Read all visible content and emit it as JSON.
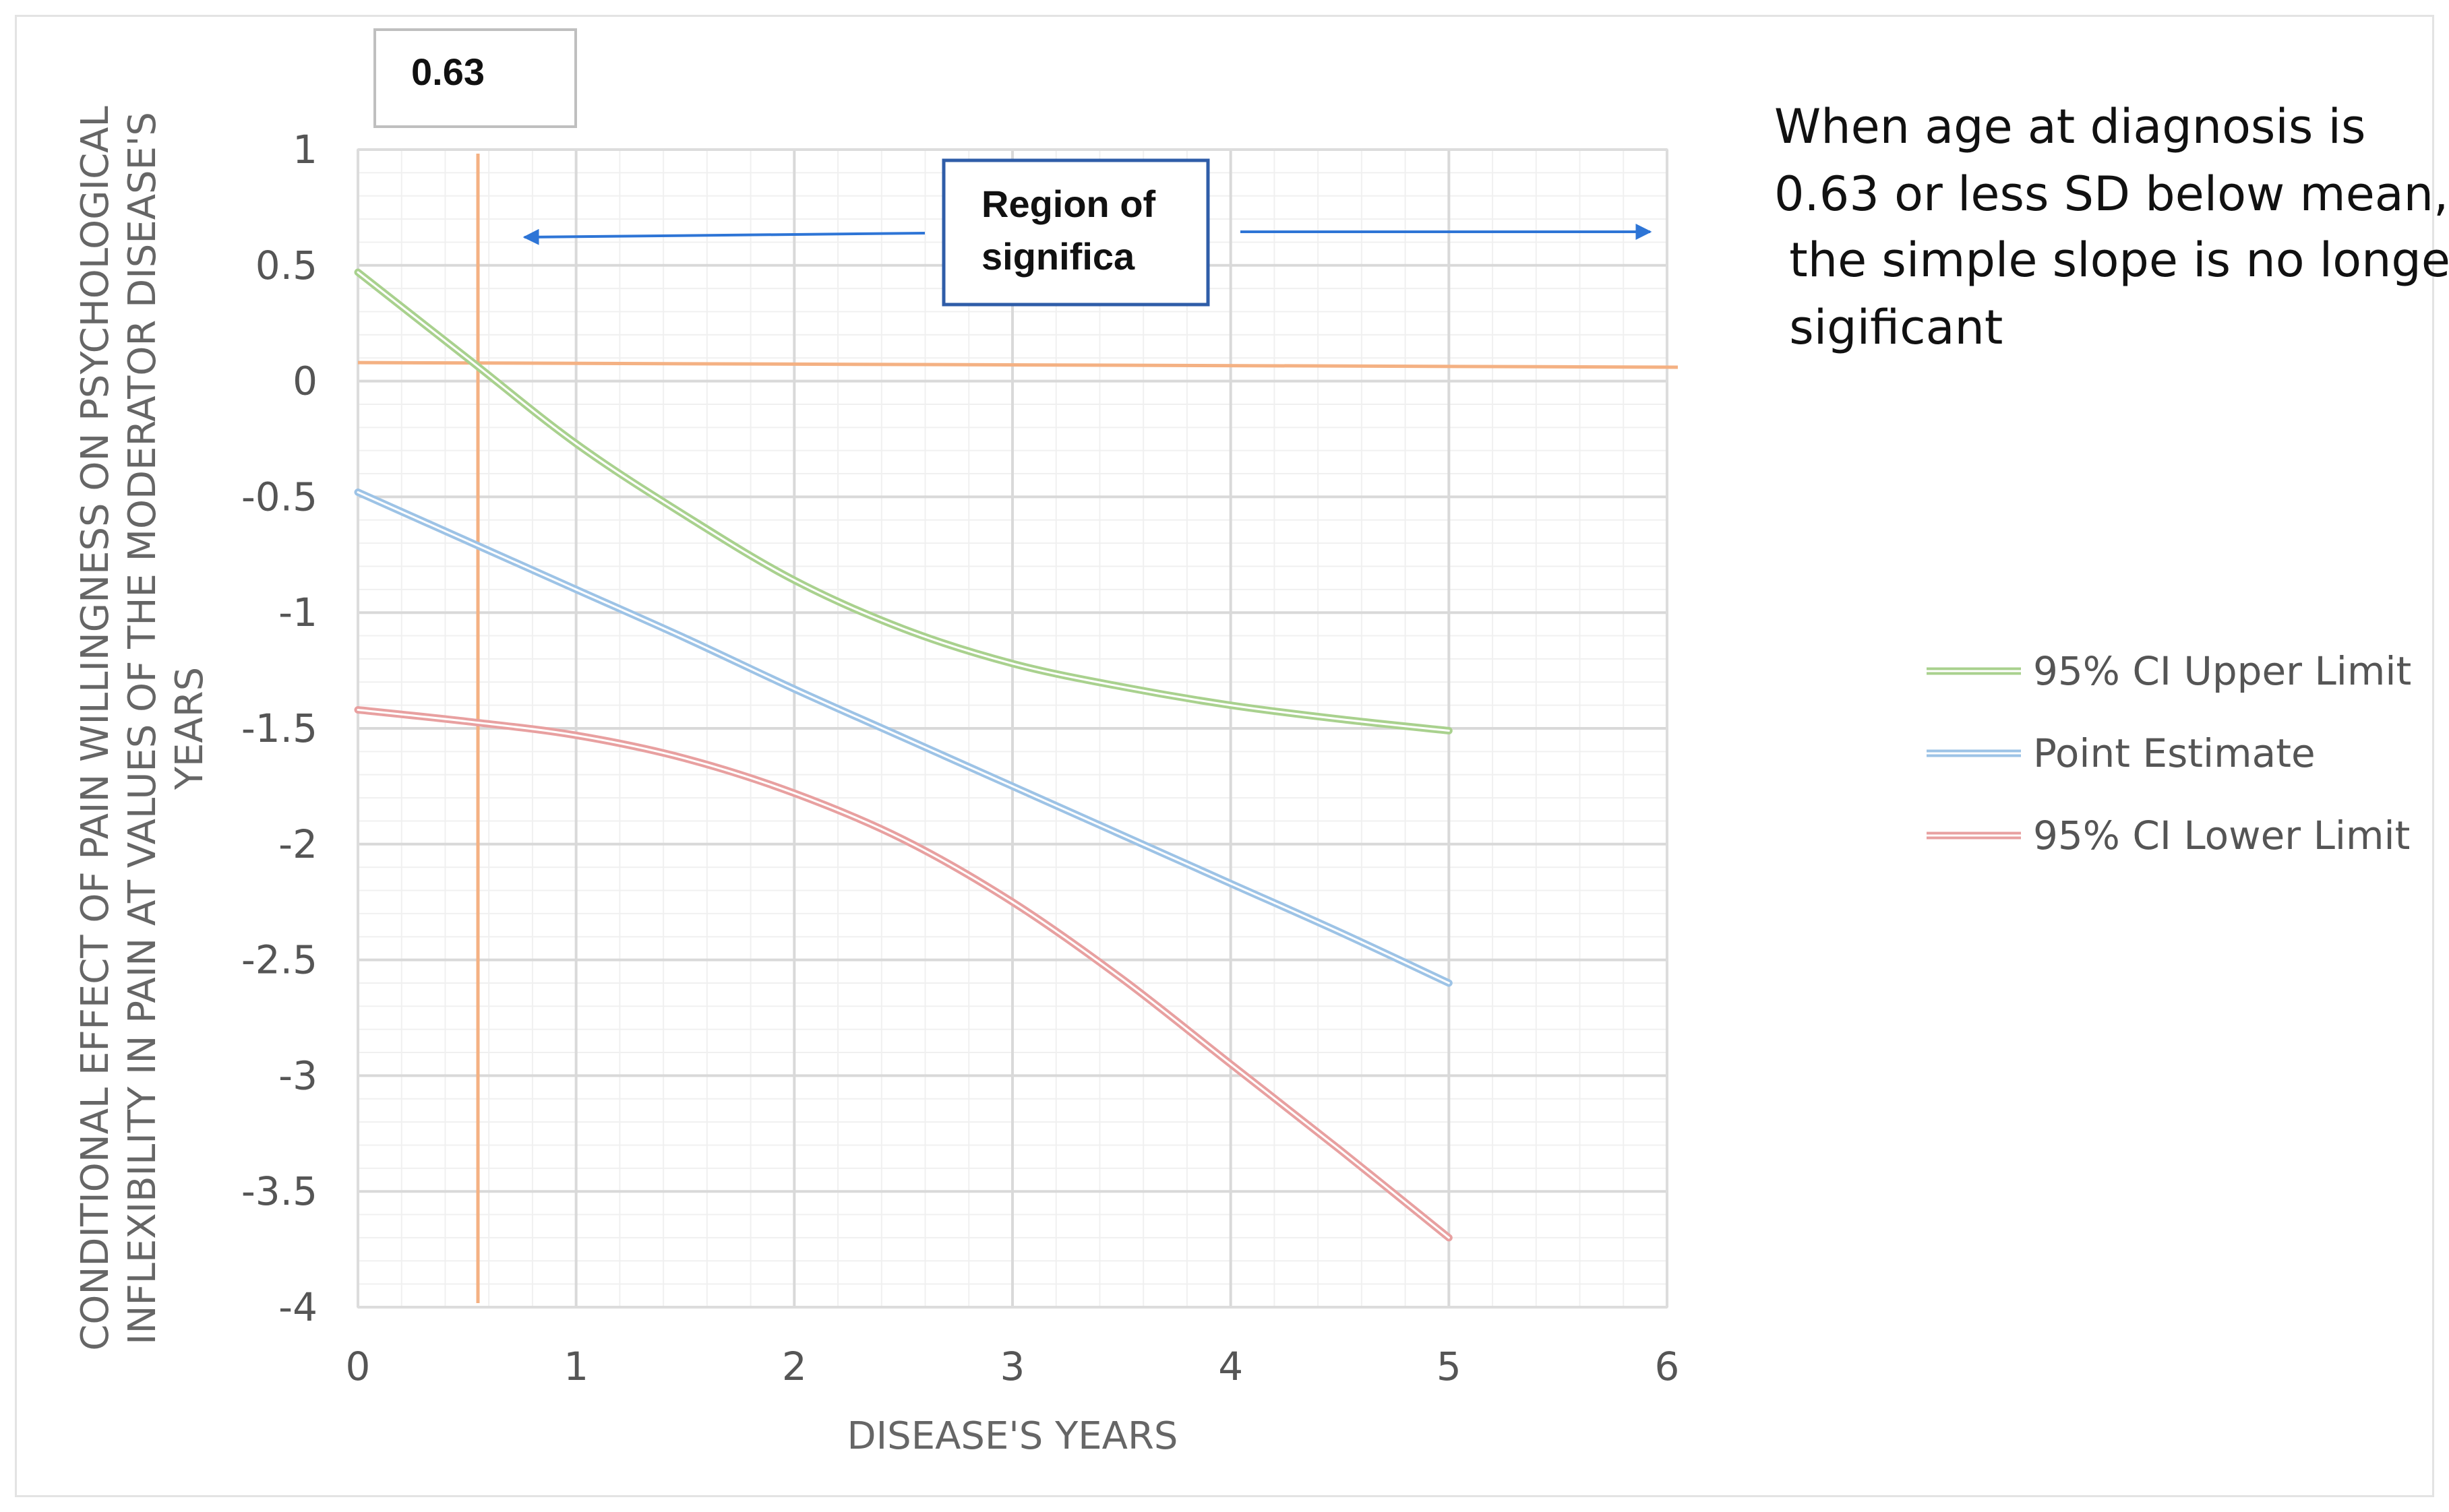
{
  "chart_data": {
    "type": "line",
    "xlabel": "DISEASE'S YEARS",
    "ylabel_lines": [
      "CONDITIONAL EFFECT OF PAIN WILLINGNESS ON PSYCHOLOGICAL",
      "INFLEXIBILITY IN PAIN AT VALUES OF THE MODERATOR DISEASE'S",
      "YEARS"
    ],
    "xlim": [
      0,
      6
    ],
    "ylim": [
      -4,
      1
    ],
    "x_ticks": [
      "0",
      "1",
      "2",
      "3",
      "4",
      "5",
      "6"
    ],
    "y_ticks": [
      "1",
      "0.5",
      "0",
      "-0.5",
      "-1",
      "-1.5",
      "-2",
      "-2.5",
      "-3",
      "-3.5",
      "-4"
    ],
    "x_tick_values": [
      0,
      1,
      2,
      3,
      4,
      5,
      6
    ],
    "y_tick_values": [
      1,
      0.5,
      0,
      -0.5,
      -1,
      -1.5,
      -2,
      -2.5,
      -3,
      -3.5,
      -4
    ],
    "series": [
      {
        "name": "95% CI Upper Limit",
        "color": "#a9d18e",
        "x": [
          0,
          0.5,
          1,
          1.5,
          2,
          2.5,
          3,
          3.5,
          4,
          4.5,
          5
        ],
        "values": [
          0.47,
          0.1,
          -0.27,
          -0.58,
          -0.86,
          -1.07,
          -1.22,
          -1.32,
          -1.4,
          -1.46,
          -1.51
        ]
      },
      {
        "name": "Point Estimate",
        "color": "#9dc3e6",
        "x": [
          0,
          0.5,
          1,
          1.5,
          2,
          2.5,
          3,
          3.5,
          4,
          4.5,
          5
        ],
        "values": [
          -0.48,
          -0.69,
          -0.9,
          -1.11,
          -1.33,
          -1.54,
          -1.75,
          -1.96,
          -2.17,
          -2.38,
          -2.6
        ]
      },
      {
        "name": "95% CI Lower Limit",
        "color": "#e8a0a0",
        "x": [
          0,
          0.5,
          1,
          1.5,
          2,
          2.5,
          3,
          3.5,
          4,
          4.5,
          5
        ],
        "values": [
          -1.42,
          -1.47,
          -1.53,
          -1.63,
          -1.78,
          -1.98,
          -2.25,
          -2.58,
          -2.95,
          -3.32,
          -3.7
        ]
      }
    ],
    "reference_lines": {
      "vertical_x": 0.55,
      "horizontal_y_start": 0.08,
      "horizontal_y_end": 0.06,
      "color": "#f4b183"
    },
    "legend": {
      "position": "right"
    },
    "annotations": {
      "value_box": "0.63",
      "region_label_lines": [
        "Region of",
        "significa"
      ],
      "note_lines": [
        "When age at diagnosis is",
        "0.63 or less SD below mean,",
        " the simple slope is no longer",
        " sigificant"
      ],
      "arrow_color": "#2e75d6",
      "box_border_color": "#2f5da8"
    }
  }
}
